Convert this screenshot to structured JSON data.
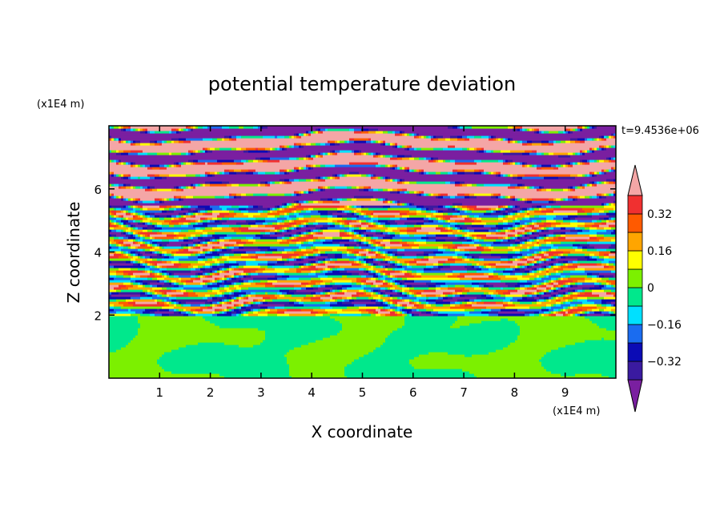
{
  "chart_data": {
    "type": "heatmap",
    "title": "potential temperature deviation",
    "xlabel": "X coordinate",
    "ylabel": "Z coordinate",
    "x_units": "(x1E4 m)",
    "y_units": "(x1E4 m)",
    "time_label": "t=9.4536e+06",
    "xlim": [
      0,
      10
    ],
    "ylim": [
      0,
      8
    ],
    "x_ticks": [
      "1",
      "2",
      "3",
      "4",
      "5",
      "6",
      "7",
      "8",
      "9"
    ],
    "y_ticks": [
      "2",
      "4",
      "6"
    ],
    "colorbar": {
      "levels": [
        -0.4,
        -0.32,
        -0.24,
        -0.16,
        -0.08,
        0,
        0.08,
        0.16,
        0.24,
        0.32,
        0.4
      ],
      "labels": [
        "0.32",
        "0.16",
        "0",
        "−0.16",
        "−0.32"
      ],
      "label_values": [
        0.32,
        0.16,
        0,
        -0.16,
        -0.32
      ],
      "colors": [
        "#7a1fa0",
        "#3a1aa0",
        "#0b0bb5",
        "#1a6cf0",
        "#00e0ff",
        "#00e88c",
        "#7cf000",
        "#ffff00",
        "#ffa500",
        "#ff5a00",
        "#f03030",
        "#f4a6a6"
      ],
      "extend": "both"
    },
    "regions": [
      {
        "zrange": [
          0,
          2
        ],
        "description": "lower layer: mostly near-zero values, mixed green (0..0.08) and teal-green (-0.08..0)"
      },
      {
        "zrange": [
          2,
          5.5
        ],
        "description": "middle layer: horizontally stretched streaks spanning the full color range"
      },
      {
        "zrange": [
          5.5,
          8
        ],
        "description": "upper layer: alternating bands of strong positive (>0.4) and strong negative (<-0.4)"
      }
    ]
  }
}
